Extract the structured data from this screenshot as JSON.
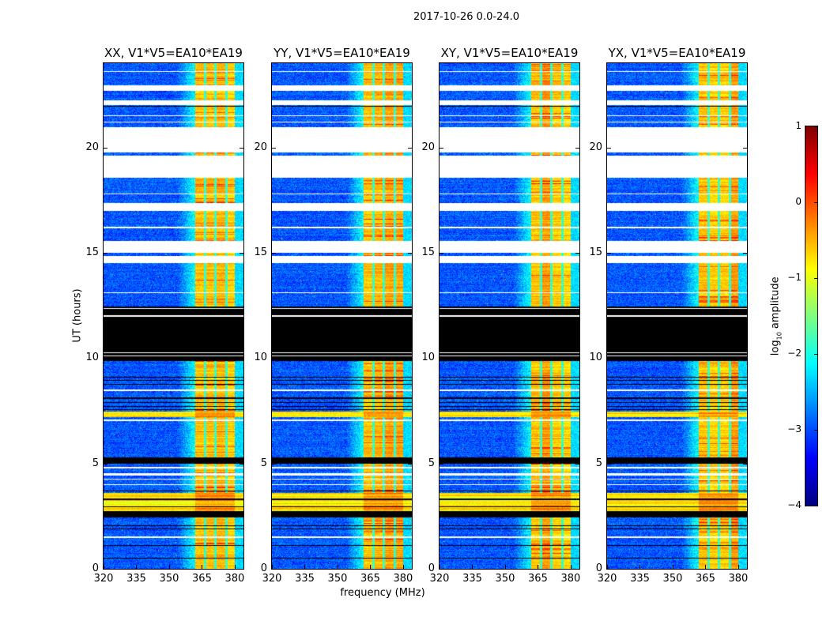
{
  "chart_data": {
    "type": "heatmap",
    "title": "2017-10-26 0.0-24.0",
    "xlabel": "frequency (MHz)",
    "ylabel": "UT (hours)",
    "xlim": [
      320,
      384
    ],
    "ylim": [
      0,
      24
    ],
    "xticks": [
      "320",
      "335",
      "350",
      "365",
      "380"
    ],
    "xtick_values": [
      320,
      335,
      350,
      365,
      380
    ],
    "yticks": [
      "0",
      "5",
      "10",
      "15",
      "20"
    ],
    "ytick_values": [
      0,
      5,
      10,
      15,
      20
    ],
    "panels": [
      {
        "title": "XX, V1*V5=EA10*EA19",
        "seed": 11
      },
      {
        "title": "YY, V1*V5=EA10*EA19",
        "seed": 23
      },
      {
        "title": "XY, V1*V5=EA10*EA19",
        "seed": 37
      },
      {
        "title": "YX, V1*V5=EA10*EA19",
        "seed": 53
      }
    ],
    "colorbar": {
      "label": "log10 amplitude",
      "label_main": "log",
      "label_sub": "10",
      "label_rest": " amplitude",
      "colormap": "jet",
      "range": [
        -4,
        1
      ],
      "ticks": [
        "1",
        "0",
        "−1",
        "−2",
        "−3",
        "−4"
      ],
      "tick_values": [
        1,
        0,
        -1,
        -2,
        -3,
        -4
      ]
    },
    "rfi_band_mhz": [
      362,
      380
    ],
    "subband_edges_mhz": [
      366.3,
      371.3,
      376.3
    ],
    "segments": [
      {
        "from": 0.0,
        "to": 2.45,
        "kind": "data"
      },
      {
        "from": 2.45,
        "to": 2.75,
        "kind": "flagged"
      },
      {
        "from": 2.75,
        "to": 3.6,
        "kind": "broadband"
      },
      {
        "from": 3.6,
        "to": 5.0,
        "kind": "data"
      },
      {
        "from": 5.0,
        "to": 5.3,
        "kind": "flagged"
      },
      {
        "from": 5.3,
        "to": 7.2,
        "kind": "data"
      },
      {
        "from": 7.2,
        "to": 7.45,
        "kind": "broadband"
      },
      {
        "from": 7.45,
        "to": 9.85,
        "kind": "data"
      },
      {
        "from": 9.85,
        "to": 12.45,
        "kind": "flagged"
      },
      {
        "from": 12.45,
        "to": 14.5,
        "kind": "data"
      },
      {
        "from": 14.5,
        "to": 14.85,
        "kind": "empty"
      },
      {
        "from": 14.85,
        "to": 15.0,
        "kind": "data"
      },
      {
        "from": 15.0,
        "to": 15.55,
        "kind": "empty"
      },
      {
        "from": 15.55,
        "to": 17.0,
        "kind": "data"
      },
      {
        "from": 17.0,
        "to": 17.35,
        "kind": "empty"
      },
      {
        "from": 17.35,
        "to": 18.55,
        "kind": "data"
      },
      {
        "from": 18.55,
        "to": 19.6,
        "kind": "empty"
      },
      {
        "from": 19.6,
        "to": 19.75,
        "kind": "data"
      },
      {
        "from": 19.75,
        "to": 20.95,
        "kind": "empty"
      },
      {
        "from": 20.95,
        "to": 22.0,
        "kind": "data"
      },
      {
        "from": 22.0,
        "to": 22.25,
        "kind": "empty"
      },
      {
        "from": 22.25,
        "to": 22.7,
        "kind": "data"
      },
      {
        "from": 22.7,
        "to": 22.95,
        "kind": "empty"
      },
      {
        "from": 22.95,
        "to": 24.0,
        "kind": "data"
      }
    ],
    "lines": [
      {
        "at": 0.5,
        "kind": "flagged"
      },
      {
        "at": 1.1,
        "kind": "flagged"
      },
      {
        "at": 1.5,
        "kind": "empty"
      },
      {
        "at": 1.9,
        "kind": "flagged"
      },
      {
        "at": 2.05,
        "kind": "flagged"
      },
      {
        "at": 2.95,
        "kind": "flagged"
      },
      {
        "at": 3.3,
        "kind": "flagged"
      },
      {
        "at": 3.7,
        "kind": "flagged"
      },
      {
        "at": 4.0,
        "kind": "empty"
      },
      {
        "at": 4.25,
        "kind": "empty"
      },
      {
        "at": 4.45,
        "kind": "empty"
      },
      {
        "at": 4.5,
        "kind": "empty"
      },
      {
        "at": 4.8,
        "kind": "empty"
      },
      {
        "at": 7.05,
        "kind": "empty"
      },
      {
        "at": 7.55,
        "kind": "flagged"
      },
      {
        "at": 7.7,
        "kind": "flagged"
      },
      {
        "at": 7.9,
        "kind": "flagged"
      },
      {
        "at": 8.1,
        "kind": "flagged"
      },
      {
        "at": 8.45,
        "kind": "empty"
      },
      {
        "at": 8.5,
        "kind": "empty"
      },
      {
        "at": 8.75,
        "kind": "flagged"
      },
      {
        "at": 8.95,
        "kind": "flagged"
      },
      {
        "at": 9.1,
        "kind": "flagged"
      },
      {
        "at": 10.1,
        "kind": "empty"
      },
      {
        "at": 10.25,
        "kind": "empty"
      },
      {
        "at": 12.0,
        "kind": "empty"
      },
      {
        "at": 12.35,
        "kind": "empty"
      },
      {
        "at": 13.1,
        "kind": "empty"
      },
      {
        "at": 16.2,
        "kind": "empty"
      },
      {
        "at": 17.8,
        "kind": "empty"
      },
      {
        "at": 21.2,
        "kind": "empty"
      },
      {
        "at": 21.5,
        "kind": "empty"
      },
      {
        "at": 21.95,
        "kind": "flagged"
      },
      {
        "at": 23.6,
        "kind": "empty"
      }
    ]
  }
}
